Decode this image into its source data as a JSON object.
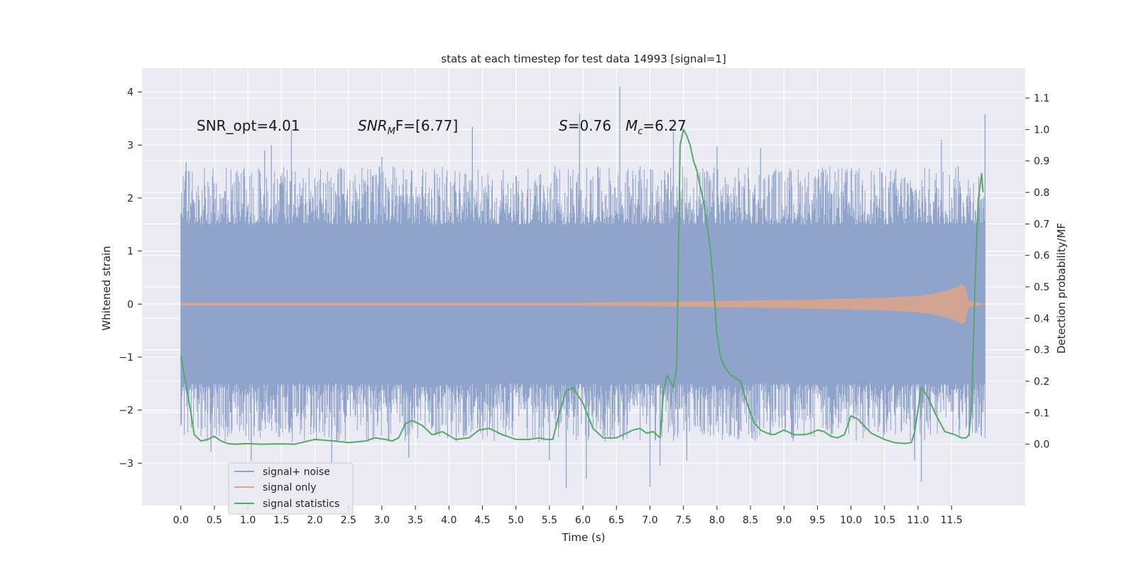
{
  "chart_data": {
    "type": "line",
    "title": "stats at each timestep for test data 14993 [signal=1]",
    "xlabel": "Time (s)",
    "ylabel_left": "Whitened strain",
    "ylabel_right": "Detection probability/MF",
    "xlim": [
      -0.58,
      12.6
    ],
    "ylim_left": [
      -3.8,
      4.45
    ],
    "ylim_right": [
      -0.195,
      1.195
    ],
    "x_ticks": [
      0.0,
      0.5,
      1.0,
      1.5,
      2.0,
      2.5,
      3.0,
      3.5,
      4.0,
      4.5,
      5.0,
      5.5,
      6.0,
      6.5,
      7.0,
      7.5,
      8.0,
      8.5,
      9.0,
      9.5,
      10.0,
      10.5,
      11.0,
      11.5
    ],
    "x_tick_labels": [
      "0.0",
      "0.5",
      "1.0",
      "1.5",
      "2.0",
      "2.5",
      "3.0",
      "3.5",
      "4.0",
      "4.5",
      "5.0",
      "5.5",
      "6.0",
      "6.5",
      "7.0",
      "7.5",
      "8.0",
      "8.5",
      "9.0",
      "9.5",
      "10.0",
      "10.5",
      "11.0",
      "11.5"
    ],
    "y_left_ticks": [
      -3,
      -2,
      -1,
      0,
      1,
      2,
      3,
      4
    ],
    "y_left_tick_labels": [
      "−3",
      "−2",
      "−1",
      "0",
      "1",
      "2",
      "3",
      "4"
    ],
    "y_right_ticks": [
      0.0,
      0.1,
      0.2,
      0.3,
      0.4,
      0.5,
      0.6,
      0.7,
      0.8,
      0.9,
      1.0,
      1.1
    ],
    "y_right_tick_labels": [
      "0.0",
      "0.1",
      "0.2",
      "0.3",
      "0.4",
      "0.5",
      "0.6",
      "0.7",
      "0.8",
      "0.9",
      "1.0",
      "1.1"
    ],
    "grid": true,
    "legend_position": "lower-left",
    "annotations": {
      "snr_opt": "SNR_opt=4.01",
      "snr_mf_main": "SNR",
      "snr_mf_sub": "M",
      "snr_mf_rest": "F=[6.77]",
      "s_main": "S",
      "s_rest": "=0.76",
      "mc_main": "M",
      "mc_sub": "c",
      "mc_rest": "=6.27"
    },
    "series": [
      {
        "name": "signal+ noise",
        "color": "#8fa3cb",
        "axis": "left",
        "x_range": [
          0.0,
          12.0
        ],
        "envelope": {
          "dense_band": [
            -1.5,
            1.5
          ],
          "typical_upper_extreme": 2.3,
          "typical_lower_extreme": -2.3
        },
        "spikes": [
          {
            "x": 0.08,
            "y": 2.67
          },
          {
            "x": 1.25,
            "y": 2.9
          },
          {
            "x": 1.35,
            "y": 3.0
          },
          {
            "x": 1.65,
            "y": 3.3
          },
          {
            "x": 3.0,
            "y": 2.78
          },
          {
            "x": 4.35,
            "y": 3.35
          },
          {
            "x": 5.95,
            "y": 3.6
          },
          {
            "x": 6.55,
            "y": 4.1
          },
          {
            "x": 7.35,
            "y": 3.25
          },
          {
            "x": 8.0,
            "y": 2.98
          },
          {
            "x": 8.65,
            "y": 2.95
          },
          {
            "x": 11.35,
            "y": 3.1
          },
          {
            "x": 11.6,
            "y": 2.6
          },
          {
            "x": 12.0,
            "y": 3.58
          },
          {
            "x": 0.45,
            "y": -2.78
          },
          {
            "x": 1.05,
            "y": -2.95
          },
          {
            "x": 2.25,
            "y": -3.0
          },
          {
            "x": 3.4,
            "y": -2.9
          },
          {
            "x": 5.5,
            "y": -2.95
          },
          {
            "x": 5.75,
            "y": -3.48
          },
          {
            "x": 6.05,
            "y": -3.3
          },
          {
            "x": 7.0,
            "y": -3.45
          },
          {
            "x": 7.15,
            "y": -3.05
          },
          {
            "x": 7.55,
            "y": -2.95
          },
          {
            "x": 10.95,
            "y": -2.95
          },
          {
            "x": 11.05,
            "y": -3.35
          }
        ]
      },
      {
        "name": "signal only",
        "color": "#dda58a",
        "axis": "left",
        "x": [
          0.0,
          6.0,
          7.5,
          8.5,
          9.5,
          10.5,
          11.0,
          11.3,
          11.5,
          11.6,
          11.65,
          11.7,
          11.75,
          12.0
        ],
        "amplitude": [
          0.02,
          0.02,
          0.04,
          0.06,
          0.08,
          0.11,
          0.15,
          0.2,
          0.27,
          0.33,
          0.38,
          0.32,
          0.05,
          0.0
        ]
      },
      {
        "name": "signal statistics",
        "color": "#55a868",
        "axis": "right",
        "x": [
          0.0,
          0.15,
          0.2,
          0.3,
          0.4,
          0.5,
          0.6,
          0.7,
          0.8,
          1.0,
          1.2,
          1.5,
          1.7,
          1.9,
          2.0,
          2.3,
          2.5,
          2.75,
          2.9,
          3.05,
          3.15,
          3.25,
          3.35,
          3.45,
          3.6,
          3.75,
          3.9,
          4.1,
          4.3,
          4.45,
          4.6,
          4.8,
          5.0,
          5.2,
          5.35,
          5.45,
          5.55,
          5.65,
          5.75,
          5.85,
          6.0,
          6.15,
          6.3,
          6.5,
          6.65,
          6.75,
          6.85,
          6.95,
          7.05,
          7.15,
          7.2,
          7.25,
          7.3,
          7.35,
          7.4,
          7.45,
          7.5,
          7.55,
          7.6,
          7.65,
          7.7,
          7.75,
          7.8,
          7.85,
          7.9,
          7.95,
          8.0,
          8.05,
          8.1,
          8.2,
          8.35,
          8.45,
          8.55,
          8.65,
          8.75,
          8.85,
          9.0,
          9.15,
          9.3,
          9.4,
          9.5,
          9.6,
          9.7,
          9.8,
          9.9,
          10.0,
          10.1,
          10.3,
          10.5,
          10.65,
          10.8,
          10.9,
          10.95,
          11.0,
          11.05,
          11.15,
          11.25,
          11.4,
          11.55,
          11.65,
          11.7,
          11.72,
          11.76,
          11.8,
          11.85,
          11.9,
          11.95
        ],
        "y": [
          0.28,
          0.1,
          0.03,
          0.01,
          0.015,
          0.025,
          0.01,
          0.002,
          0.0,
          0.002,
          0.0,
          0.001,
          0.0,
          0.01,
          0.015,
          0.01,
          0.005,
          0.01,
          0.02,
          0.015,
          0.01,
          0.02,
          0.065,
          0.075,
          0.06,
          0.03,
          0.04,
          0.015,
          0.02,
          0.045,
          0.05,
          0.03,
          0.015,
          0.015,
          0.02,
          0.015,
          0.015,
          0.1,
          0.17,
          0.18,
          0.13,
          0.05,
          0.02,
          0.02,
          0.035,
          0.045,
          0.05,
          0.035,
          0.04,
          0.02,
          0.16,
          0.22,
          0.2,
          0.18,
          0.25,
          0.95,
          1.0,
          0.98,
          0.95,
          0.9,
          0.87,
          0.82,
          0.77,
          0.7,
          0.62,
          0.5,
          0.35,
          0.28,
          0.25,
          0.22,
          0.2,
          0.13,
          0.07,
          0.045,
          0.035,
          0.03,
          0.045,
          0.03,
          0.03,
          0.035,
          0.045,
          0.04,
          0.025,
          0.02,
          0.03,
          0.09,
          0.08,
          0.035,
          0.015,
          0.005,
          0.002,
          0.005,
          0.04,
          0.11,
          0.18,
          0.15,
          0.1,
          0.04,
          0.03,
          0.02,
          0.02,
          0.02,
          0.03,
          0.12,
          0.5,
          0.78,
          0.86
        ],
        "y_end": 0.8
      }
    ]
  }
}
